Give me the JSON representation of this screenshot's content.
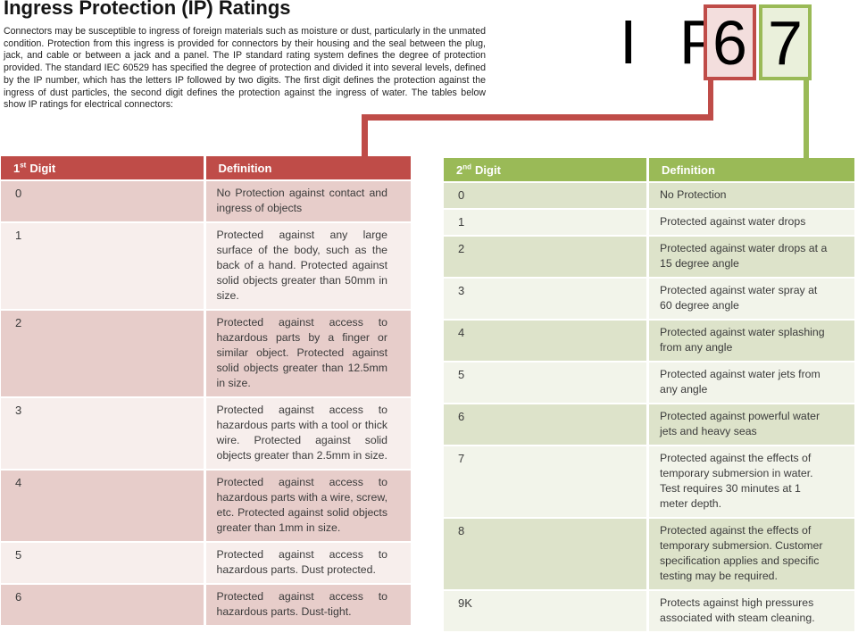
{
  "page": {
    "title": "Ingress Protection (IP) Ratings",
    "intro": "Connectors may be susceptible to ingress of foreign materials such as moisture or dust, particularly in the unmated condition. Protection from this ingress is provided for connectors by their housing and the seal between the plug, jack, and cable or between a jack and a panel. The IP standard rating system defines the degree of protection provided. The standard IEC 60529 has specified the degree of protection and divided it into several levels, defined by the IP number, which has the letters IP followed by two digits. The first digit defines the protection against the ingress of dust particles, the second digit defines the protection against the ingress of water. The tables below show IP ratings for electrical connectors:"
  },
  "ip_graphic": {
    "prefix": "I P",
    "first_digit": "6",
    "second_digit": "7"
  },
  "colors": {
    "red_accent": "#bf4c48",
    "red_box_fill": "#f3dedd",
    "pink_row_dark": "#e7cdca",
    "pink_row_light": "#f7eeec",
    "green_accent": "#9aba57",
    "green_box_fill": "#eaf0db",
    "green_row_dark": "#dde3ca",
    "green_row_light": "#f2f4ea"
  },
  "first_digit_table": {
    "header": {
      "digit_num": "1",
      "digit_sup": "st",
      "digit_word": "Digit",
      "definition": "Definition"
    },
    "rows": [
      {
        "digit": "0",
        "definition": "No Protection against contact and ingress of objects"
      },
      {
        "digit": "1",
        "definition": "Protected against any large surface of the body, such as the back of a hand. Protected against solid objects greater than 50mm in size."
      },
      {
        "digit": "2",
        "definition": "Protected against access to hazardous parts by a finger or similar object. Protected against solid objects greater than 12.5mm in size."
      },
      {
        "digit": "3",
        "definition": "Protected against access to hazardous parts with a tool or thick wire. Protected against solid objects greater than 2.5mm in size."
      },
      {
        "digit": "4",
        "definition": "Protected against access to hazardous parts with a wire, screw, etc. Protected against solid objects greater than 1mm in size."
      },
      {
        "digit": "5",
        "definition": "Protected against access to hazardous parts. Dust protected."
      },
      {
        "digit": "6",
        "definition": "Protected against access to hazardous parts. Dust-tight."
      }
    ]
  },
  "second_digit_table": {
    "header": {
      "digit_num": "2",
      "digit_sup": "nd",
      "digit_word": "Digit",
      "definition": "Definition"
    },
    "rows": [
      {
        "digit": "0",
        "definition": "No Protection"
      },
      {
        "digit": "1",
        "definition": "Protected against water drops"
      },
      {
        "digit": "2",
        "definition": "Protected against water drops at a 15 degree angle"
      },
      {
        "digit": "3",
        "definition": "Protected against water spray at 60 degree angle"
      },
      {
        "digit": "4",
        "definition": "Protected against water splashing from any angle"
      },
      {
        "digit": "5",
        "definition": "Protected against water jets from any angle"
      },
      {
        "digit": "6",
        "definition": "Protected against powerful water jets and heavy seas"
      },
      {
        "digit": "7",
        "definition": "Protected against the effects of temporary submersion in water. Test requires 30 minutes at 1 meter depth."
      },
      {
        "digit": "8",
        "definition": "Protected against the effects of temporary submersion. Customer specification applies and specific testing may be required."
      },
      {
        "digit": "9K",
        "definition": "Protects against high pressures associated with steam cleaning."
      }
    ]
  }
}
